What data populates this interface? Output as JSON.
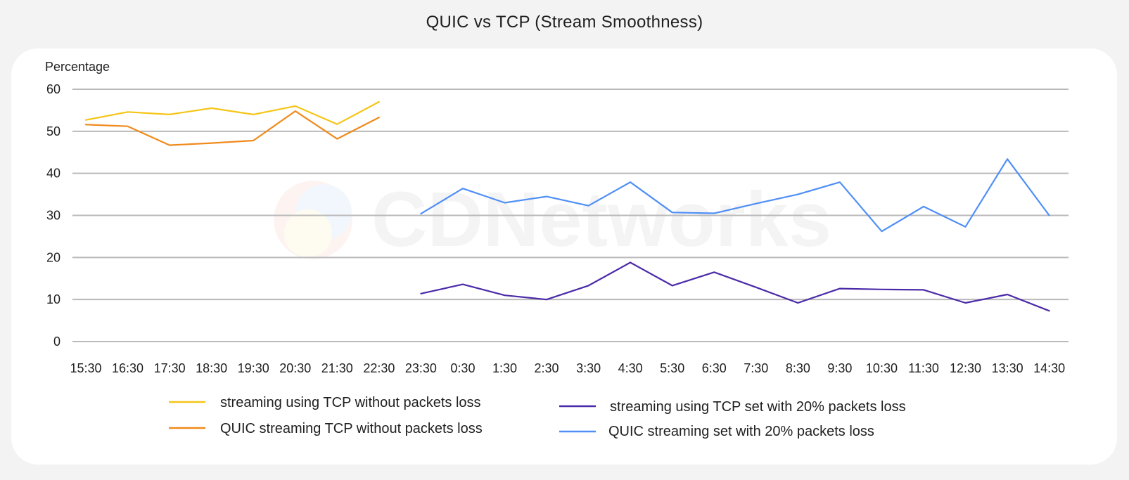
{
  "chart_data": {
    "type": "line",
    "title": "QUIC vs TCP (Stream Smoothness)",
    "ylabel": "Percentage",
    "xlabel": "",
    "ylim": [
      0,
      60
    ],
    "yticks": [
      0,
      10,
      20,
      30,
      40,
      50,
      60
    ],
    "grid": true,
    "legend_position": "bottom",
    "watermark": "CDNetworks",
    "x": [
      "15:30",
      "16:30",
      "17:30",
      "18:30",
      "19:30",
      "20:30",
      "21:30",
      "22:30",
      "23:30",
      "0:30",
      "1:30",
      "2:30",
      "3:30",
      "4:30",
      "5:30",
      "6:30",
      "7:30",
      "8:30",
      "9:30",
      "10:30",
      "11:30",
      "12:30",
      "13:30",
      "14:30"
    ],
    "series": [
      {
        "name": "streaming using TCP without packets loss",
        "color": "#f5c518",
        "values": [
          52.7,
          54.6,
          54.0,
          55.5,
          54.0,
          56.0,
          51.7,
          57.0,
          null,
          null,
          null,
          null,
          null,
          null,
          null,
          null,
          null,
          null,
          null,
          null,
          null,
          null,
          null,
          null
        ]
      },
      {
        "name": "QUIC streaming TCP without packets loss",
        "color": "#f08a1c",
        "values": [
          51.6,
          51.2,
          46.7,
          47.2,
          47.8,
          54.8,
          48.2,
          53.3,
          null,
          null,
          null,
          null,
          null,
          null,
          null,
          null,
          null,
          null,
          null,
          null,
          null,
          null,
          null,
          null
        ]
      },
      {
        "name": "streaming using TCP set with 20% packets loss",
        "color": "#4b2aa8",
        "values": [
          null,
          null,
          null,
          null,
          null,
          null,
          null,
          null,
          11.4,
          13.6,
          11.0,
          10.0,
          13.3,
          18.8,
          13.3,
          16.5,
          12.9,
          9.2,
          12.6,
          12.4,
          12.3,
          9.2,
          11.2,
          7.3
        ]
      },
      {
        "name": "QUIC streaming set with 20% packets loss",
        "color": "#4f8ff7",
        "values": [
          null,
          null,
          null,
          null,
          null,
          null,
          null,
          null,
          30.4,
          36.4,
          33.0,
          34.5,
          32.3,
          37.9,
          30.7,
          30.5,
          32.8,
          35.0,
          37.9,
          26.2,
          32.1,
          27.3,
          43.4,
          30.0
        ]
      }
    ]
  }
}
